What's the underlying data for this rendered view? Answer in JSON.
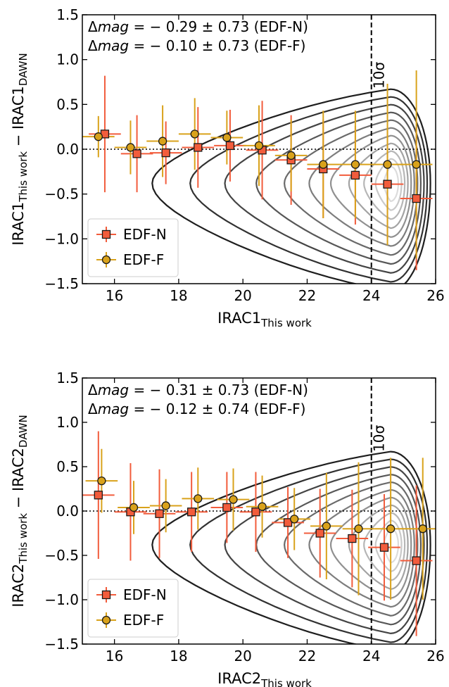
{
  "chart_data": [
    {
      "type": "scatter",
      "ylabel": "IRAC1_This work − IRAC1_DAWN",
      "ylabel_main": "IRAC1",
      "ylabel_sub1": "This work",
      "ylabel_minus": "− IRAC1",
      "ylabel_sub2": "DAWN",
      "xlabel_main": "IRAC1",
      "xlabel_sub": "This work",
      "xlim": [
        15,
        26
      ],
      "ylim": [
        -1.5,
        1.5
      ],
      "xticks": [
        "16",
        "18",
        "20",
        "22",
        "24",
        "26"
      ],
      "yticks": [
        "1.5",
        "1.0",
        "0.5",
        "0.0",
        "−0.5",
        "−1.0",
        "−1.5"
      ],
      "annotation_lines": [
        {
          "prefix": "Δ",
          "italic": "mag",
          "rest": " = − 0.29 ± 0.73 (EDF-N)"
        },
        {
          "prefix": "Δ",
          "italic": "mag",
          "rest": " = − 0.10 ± 0.73 (EDF-F)"
        }
      ],
      "vline_x": 24,
      "vline_label": "10σ",
      "hline_y": 0,
      "legend_position": "lower-left",
      "series": [
        {
          "name": "EDF-N",
          "color": "#f25c3c",
          "x": [
            15.7,
            16.7,
            17.6,
            18.6,
            19.6,
            20.6,
            21.5,
            22.5,
            23.5,
            24.5,
            25.4
          ],
          "y": [
            0.17,
            -0.05,
            -0.04,
            0.02,
            0.04,
            -0.01,
            -0.12,
            -0.22,
            -0.29,
            -0.39,
            -0.55
          ],
          "yerr": [
            0.65,
            0.43,
            0.35,
            0.45,
            0.4,
            0.55,
            0.5,
            0.55,
            0.55,
            0.6,
            0.8
          ]
        },
        {
          "name": "EDF-F",
          "color": "#d9a21b",
          "x": [
            15.5,
            16.5,
            17.5,
            18.5,
            19.5,
            20.5,
            21.5,
            22.5,
            23.5,
            24.5,
            25.4
          ],
          "y": [
            0.14,
            0.02,
            0.09,
            0.17,
            0.13,
            0.04,
            -0.07,
            -0.17,
            -0.17,
            -0.17,
            -0.17
          ],
          "yerr": [
            0.23,
            0.3,
            0.4,
            0.4,
            0.3,
            0.45,
            0.4,
            0.6,
            0.6,
            0.9,
            1.05
          ]
        }
      ]
    },
    {
      "type": "scatter",
      "ylabel": "IRAC2_This work − IRAC2_DAWN",
      "ylabel_main": "IRAC2",
      "ylabel_sub1": "This work",
      "ylabel_minus": "− IRAC2",
      "ylabel_sub2": "DAWN",
      "xlabel_main": "IRAC2",
      "xlabel_sub": "This work",
      "xlim": [
        15,
        26
      ],
      "ylim": [
        -1.5,
        1.5
      ],
      "xticks": [
        "16",
        "18",
        "20",
        "22",
        "24",
        "26"
      ],
      "yticks": [
        "1.5",
        "1.0",
        "0.5",
        "0.0",
        "−0.5",
        "−1.0",
        "−1.5"
      ],
      "annotation_lines": [
        {
          "prefix": "Δ",
          "italic": "mag",
          "rest": " = − 0.31 ± 0.73 (EDF-N)"
        },
        {
          "prefix": "Δ",
          "italic": "mag",
          "rest": " = − 0.12 ± 0.74 (EDF-F)"
        }
      ],
      "vline_x": 24,
      "vline_label": "10σ",
      "hline_y": 0,
      "legend_position": "lower-left",
      "series": [
        {
          "name": "EDF-N",
          "color": "#f25c3c",
          "x": [
            15.5,
            16.5,
            17.4,
            18.4,
            19.5,
            20.4,
            21.4,
            22.4,
            23.4,
            24.4,
            25.4
          ],
          "y": [
            0.18,
            -0.01,
            -0.03,
            -0.01,
            0.04,
            -0.01,
            -0.13,
            -0.25,
            -0.31,
            -0.41,
            -0.56
          ],
          "yerr": [
            0.72,
            0.55,
            0.5,
            0.45,
            0.4,
            0.45,
            0.4,
            0.5,
            0.55,
            0.6,
            0.85
          ]
        },
        {
          "name": "EDF-F",
          "color": "#d9a21b",
          "x": [
            15.6,
            16.6,
            17.6,
            18.6,
            19.7,
            20.6,
            21.6,
            22.6,
            23.6,
            24.6,
            25.6
          ],
          "y": [
            0.34,
            0.04,
            0.06,
            0.14,
            0.13,
            0.05,
            -0.09,
            -0.17,
            -0.2,
            -0.2,
            -0.2
          ],
          "yerr": [
            0.36,
            0.3,
            0.3,
            0.35,
            0.35,
            0.35,
            0.35,
            0.6,
            0.75,
            0.8,
            0.8
          ]
        }
      ]
    }
  ]
}
